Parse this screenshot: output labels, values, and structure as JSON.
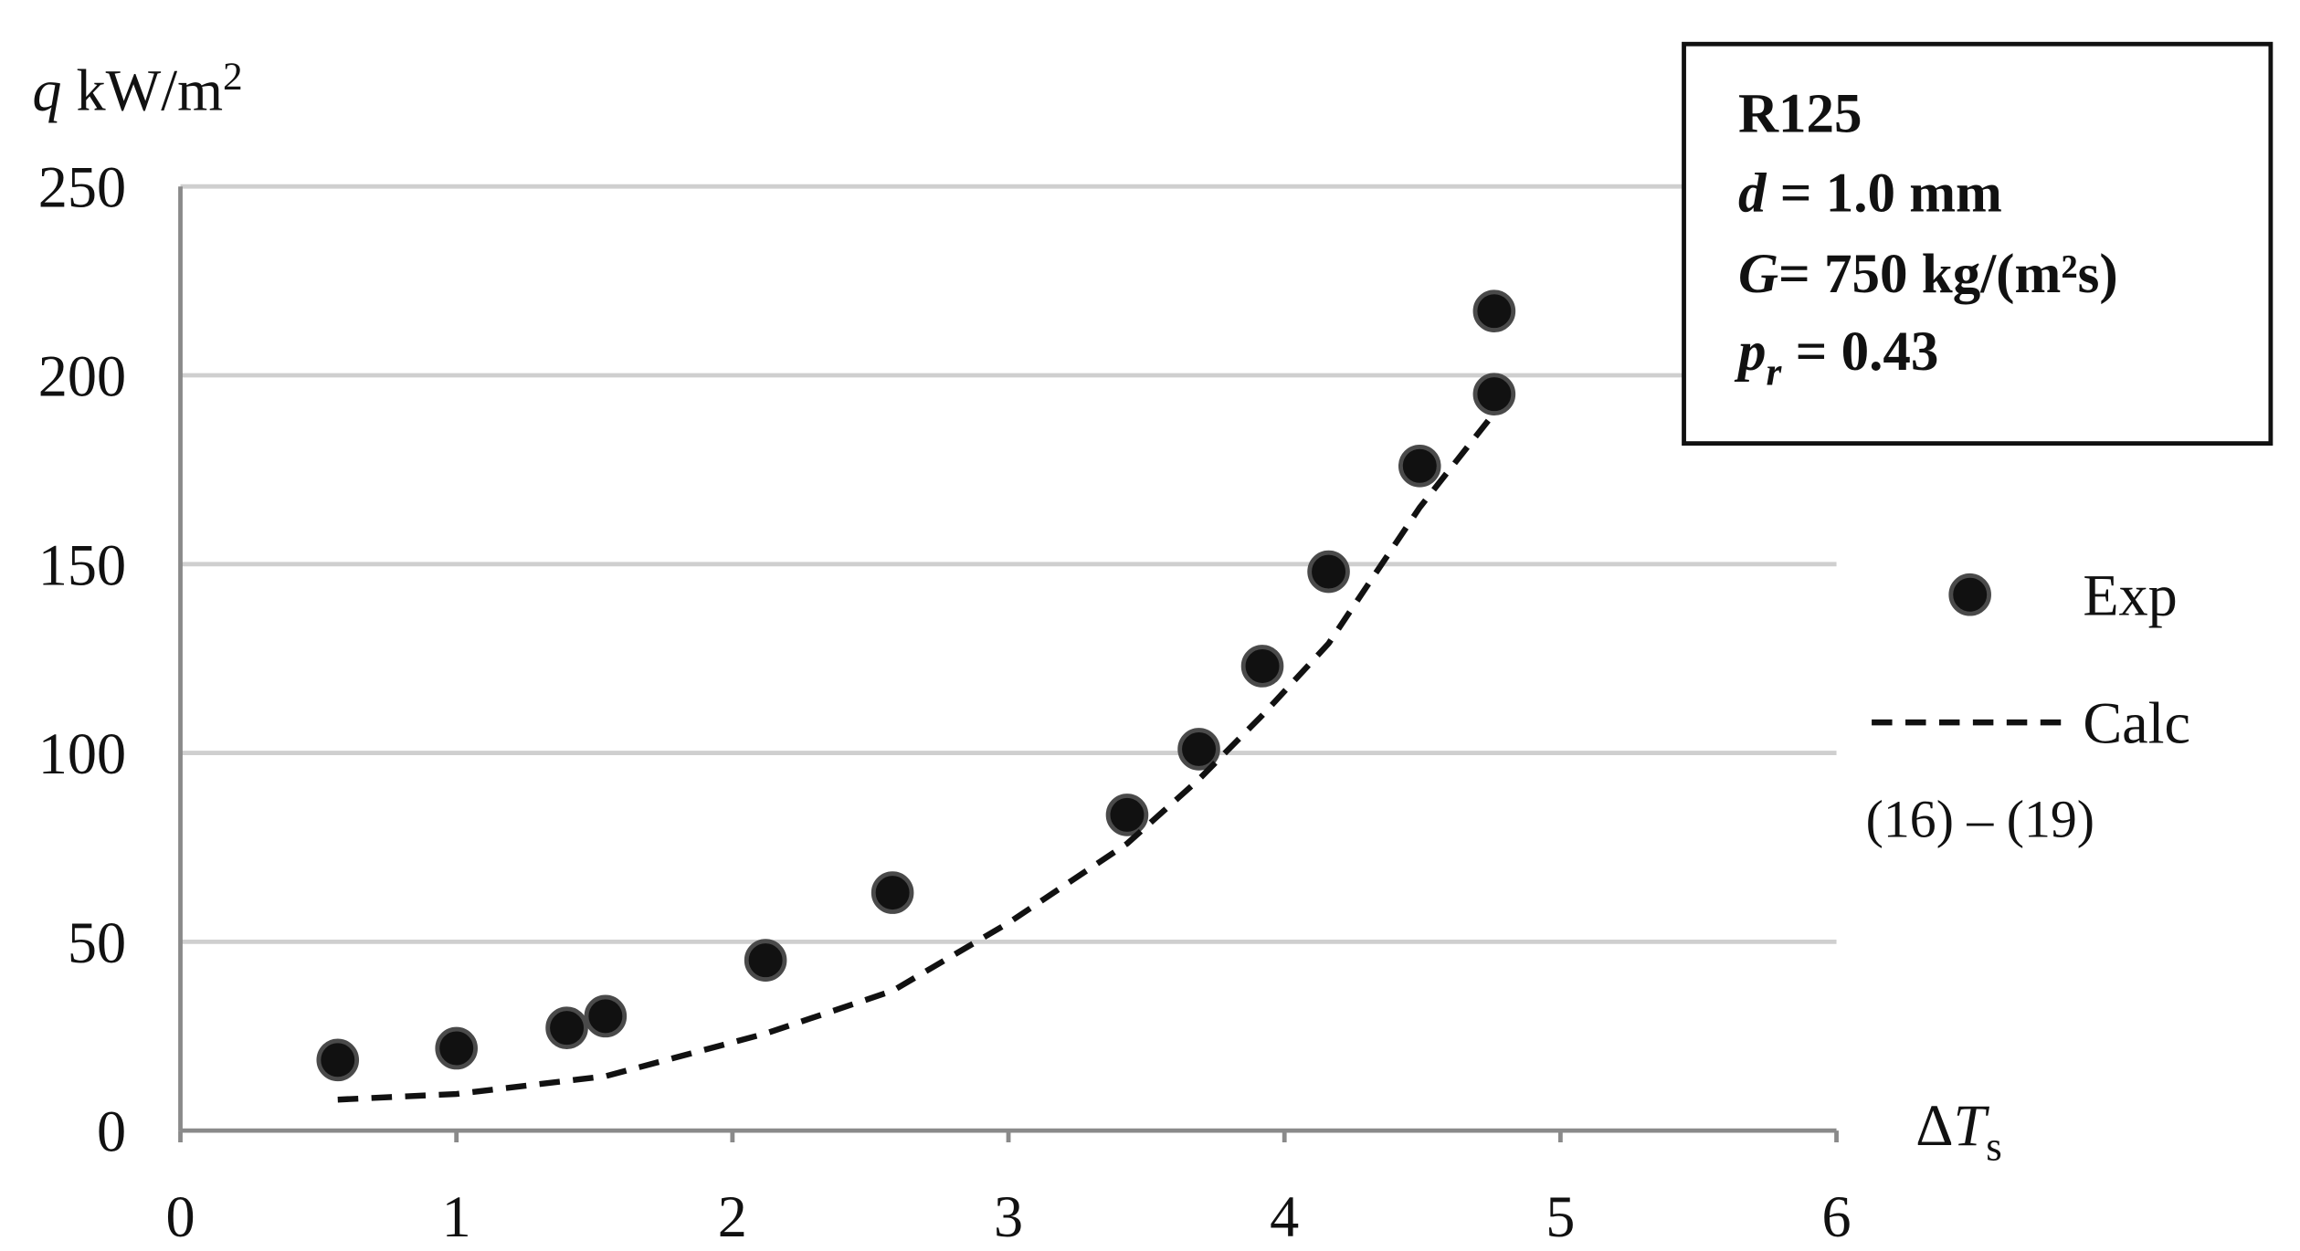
{
  "chart_data": {
    "type": "scatter",
    "y_label": {
      "symbol": "q",
      "unit": "kW/m",
      "sup": "2"
    },
    "x_label": {
      "delta": "Δ",
      "symbol": "T",
      "sub": "s"
    },
    "annotation": [
      [
        "R125"
      ],
      [
        "d",
        " = 1.0 mm"
      ],
      [
        "G",
        "= 750 kg/(m²s)"
      ],
      [
        "p",
        "r",
        " = 0.43"
      ]
    ],
    "legend_note": "(16) – (19)",
    "xlim": [
      0,
      6
    ],
    "xticks": [
      0,
      1,
      2,
      3,
      4,
      5,
      6
    ],
    "ylim": [
      0,
      250
    ],
    "yticks": [
      0,
      50,
      100,
      150,
      200,
      250
    ],
    "grid": true,
    "series": [
      {
        "name": "Exp",
        "color": "#111111",
        "style": "markers",
        "x": [
          0.57,
          1.0,
          1.4,
          1.54,
          2.12,
          2.58,
          3.43,
          3.69,
          3.92,
          4.16,
          4.49,
          4.76,
          4.76
        ],
        "values": [
          18.7,
          21.8,
          27.2,
          30.3,
          45.1,
          63,
          83.6,
          101,
          123,
          148,
          176,
          195,
          217
        ]
      },
      {
        "name": "Calc",
        "color": "#111111",
        "style": "dashed",
        "x": [
          0.57,
          1.0,
          1.54,
          2.12,
          2.58,
          3.0,
          3.43,
          3.69,
          3.92,
          4.16,
          4.49,
          4.76
        ],
        "values": [
          8.2,
          9.7,
          14.4,
          25.7,
          37,
          55,
          76,
          93,
          110,
          129,
          165,
          190
        ]
      }
    ]
  }
}
